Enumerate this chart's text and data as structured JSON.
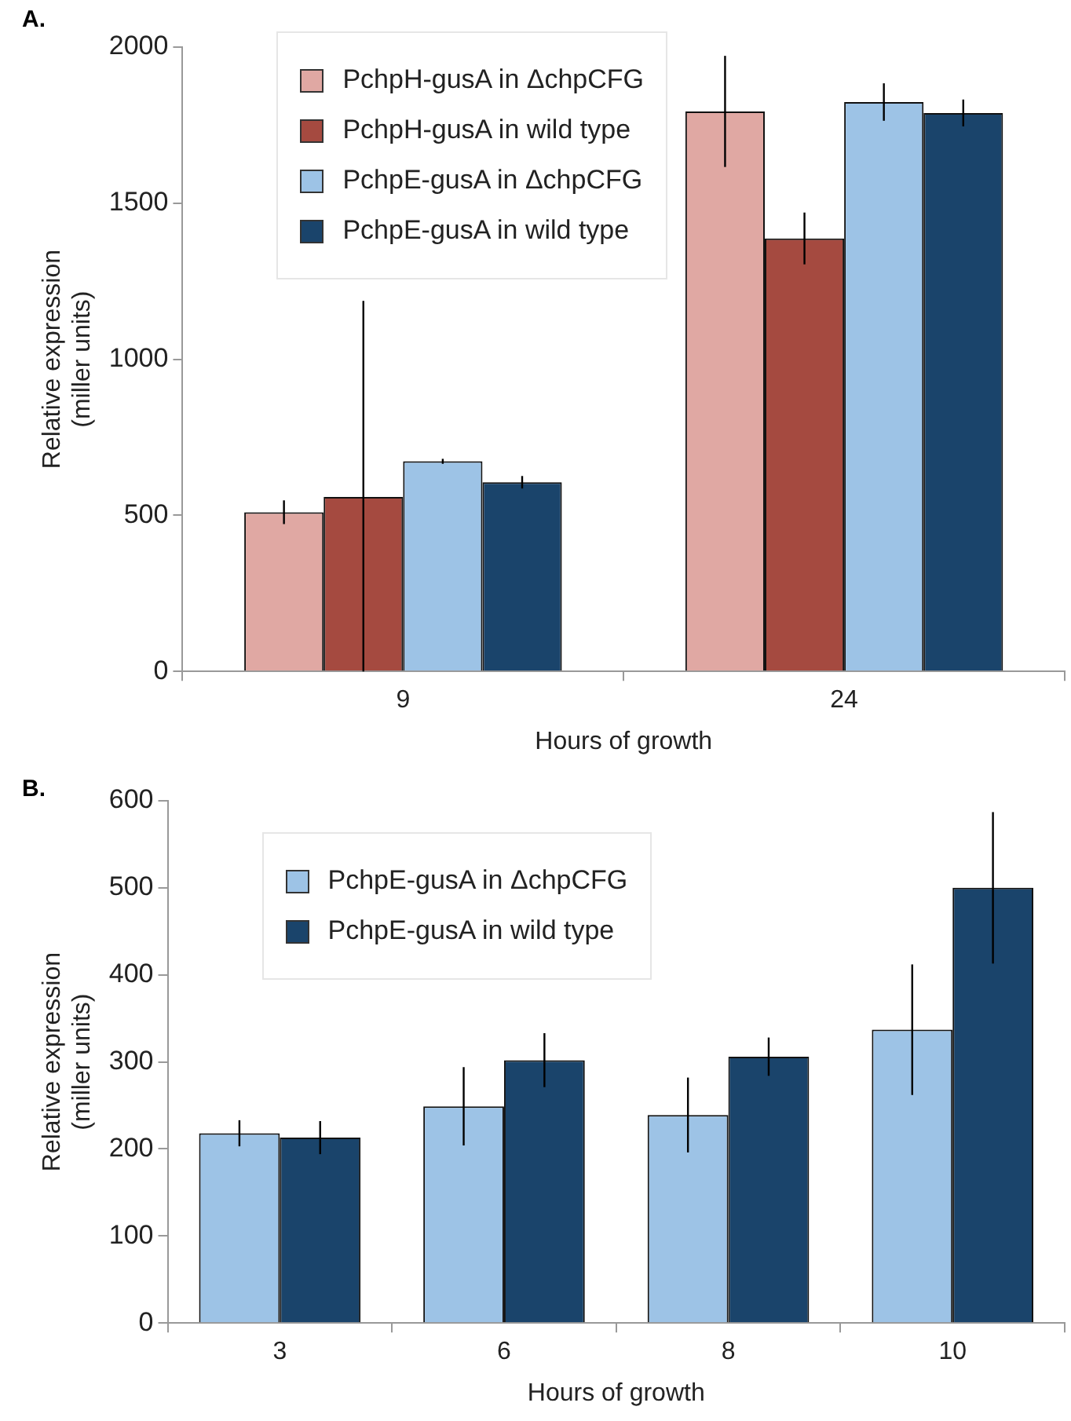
{
  "chart_data": [
    {
      "type": "bar",
      "annotations": [
        "A."
      ],
      "xlabel": "Hours of growth",
      "ylabel": "Relative expression\n(miller units)",
      "categories": [
        "9",
        "24"
      ],
      "ylim": [
        0,
        2000
      ],
      "yticks": [
        0,
        500,
        1000,
        1500,
        2000
      ],
      "grid": false,
      "legend": "top left",
      "series": [
        {
          "name": "PchpH-gusA in ΔchpCFG",
          "color": "#e0a8a3",
          "values": [
            510,
            1794
          ],
          "errors": [
            38,
            178
          ]
        },
        {
          "name": "PchpH-gusA in wild type",
          "color": "#a54a40",
          "values": [
            559,
            1387
          ],
          "errors": [
            [
              0,
              1187
            ],
            83
          ]
        },
        {
          "name": "PchpE-gusA in ΔchpCFG",
          "color": "#9dc3e6",
          "values": [
            673,
            1824
          ],
          "errors": [
            8,
            60
          ]
        },
        {
          "name": "PchpE-gusA in wild type",
          "color": "#1a446b",
          "values": [
            606,
            1789
          ],
          "errors": [
            20,
            43
          ]
        }
      ]
    },
    {
      "type": "bar",
      "annotations": [
        "B."
      ],
      "xlabel": "Hours of growth",
      "ylabel": "Relative expression\n(miller units)",
      "categories": [
        "3",
        "6",
        "8",
        "10"
      ],
      "ylim": [
        0,
        600
      ],
      "yticks": [
        0,
        100,
        200,
        300,
        400,
        500,
        600
      ],
      "grid": false,
      "legend": "top left",
      "series": [
        {
          "name": "PchpE-gusA in ΔchpCFG",
          "color": "#9dc3e6",
          "values": [
            218,
            249,
            239,
            337
          ],
          "errors": [
            15,
            45,
            43,
            75
          ]
        },
        {
          "name": "PchpE-gusA in wild type",
          "color": "#1a446b",
          "values": [
            213,
            302,
            306,
            500
          ],
          "errors": [
            19,
            31,
            22,
            87
          ]
        }
      ]
    }
  ]
}
